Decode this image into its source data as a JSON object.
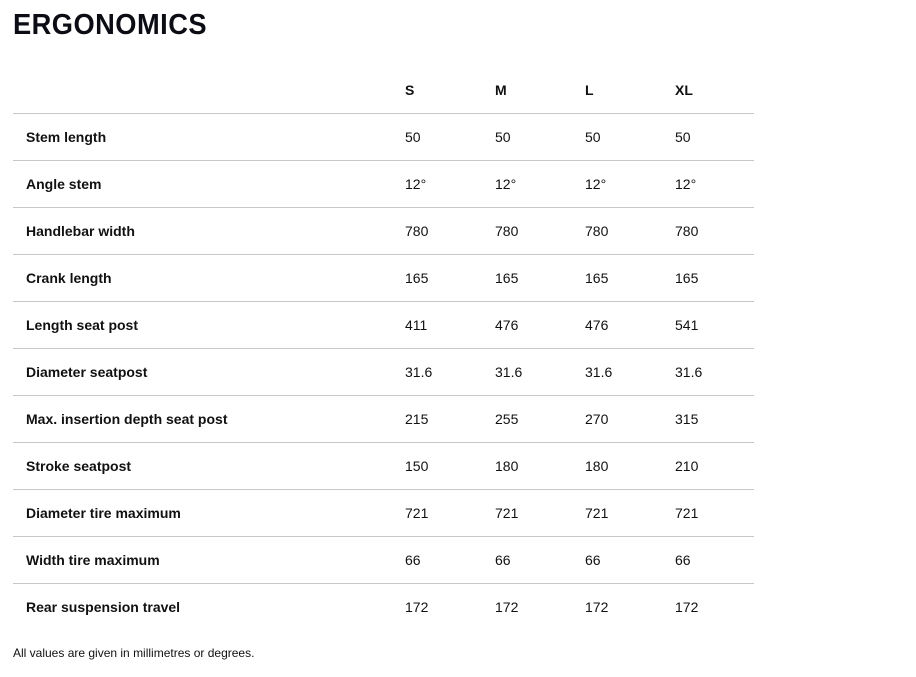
{
  "page": {
    "title": "ERGONOMICS",
    "footnote": "All values are given in millimetres or degrees."
  },
  "colors": {
    "text": "#111111",
    "title": "#0c0c14",
    "divider": "#c8c8c8",
    "background": "#ffffff"
  },
  "table": {
    "columns": [
      "S",
      "M",
      "L",
      "XL"
    ],
    "rows": [
      {
        "label": "Stem length",
        "values": [
          "50",
          "50",
          "50",
          "50"
        ]
      },
      {
        "label": "Angle stem",
        "values": [
          "12°",
          "12°",
          "12°",
          "12°"
        ]
      },
      {
        "label": "Handlebar width",
        "values": [
          "780",
          "780",
          "780",
          "780"
        ]
      },
      {
        "label": "Crank length",
        "values": [
          "165",
          "165",
          "165",
          "165"
        ]
      },
      {
        "label": "Length seat post",
        "values": [
          "411",
          "476",
          "476",
          "541"
        ]
      },
      {
        "label": "Diameter seatpost",
        "values": [
          "31.6",
          "31.6",
          "31.6",
          "31.6"
        ]
      },
      {
        "label": "Max. insertion depth seat post",
        "values": [
          "215",
          "255",
          "270",
          "315"
        ]
      },
      {
        "label": "Stroke seatpost",
        "values": [
          "150",
          "180",
          "180",
          "210"
        ]
      },
      {
        "label": "Diameter tire maximum",
        "values": [
          "721",
          "721",
          "721",
          "721"
        ]
      },
      {
        "label": "Width tire maximum",
        "values": [
          "66",
          "66",
          "66",
          "66"
        ]
      },
      {
        "label": "Rear suspension travel",
        "values": [
          "172",
          "172",
          "172",
          "172"
        ]
      }
    ]
  }
}
